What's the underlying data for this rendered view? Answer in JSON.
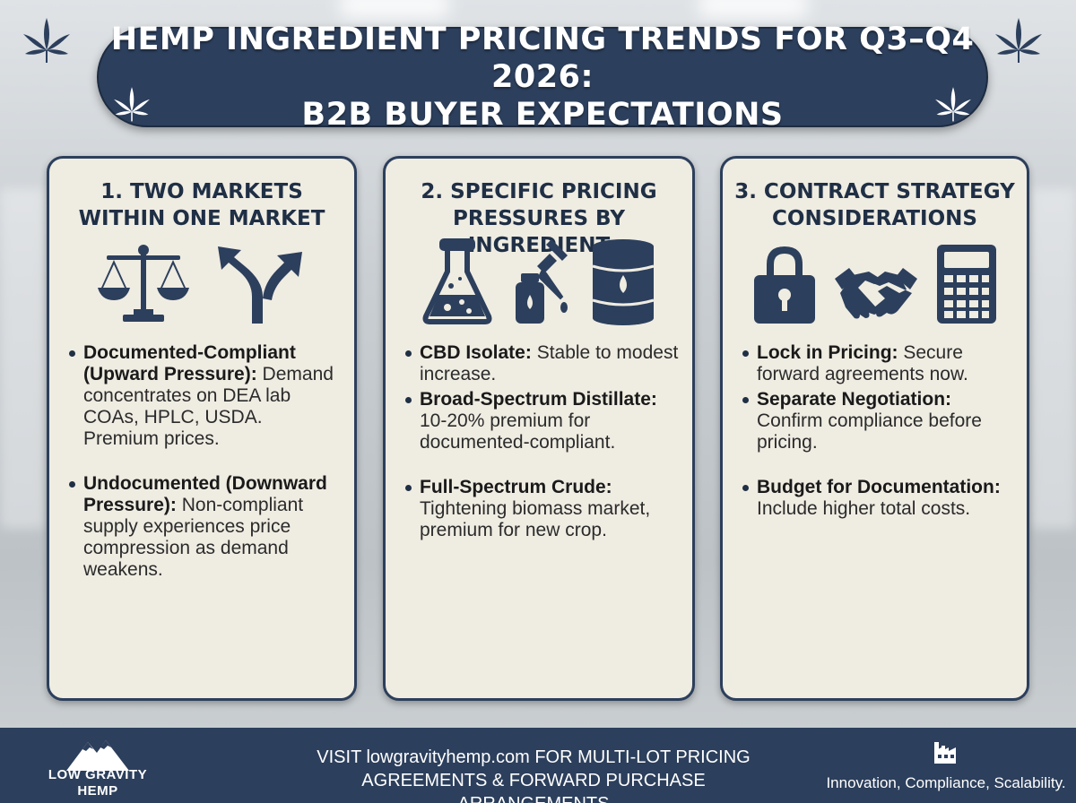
{
  "title": {
    "line1": "HEMP INGREDIENT PRICING TRENDS FOR Q3–Q4 2026:",
    "line2": "B2B BUYER EXPECTATIONS"
  },
  "panels": [
    {
      "heading_line1": "1. TWO MARKETS",
      "heading_line2": "WITHIN ONE MARKET",
      "icons": [
        "balance-scale-icon",
        "split-arrow-icon"
      ],
      "bullets": [
        {
          "bold": "Documented-Compliant (Upward Pressure):",
          "text": " Demand concentrates on DEA lab COAs, HPLC, USDA. Premium prices."
        },
        {
          "bold": "Undocumented (Downward Pressure):",
          "text": " Non-compliant supply experiences price compression as demand weakens."
        }
      ]
    },
    {
      "heading_line1": "2. SPECIFIC PRICING",
      "heading_line2": "PRESSURES BY INGREDIENT",
      "icons": [
        "flask-icon",
        "dropper-bottle-icon",
        "oil-barrel-icon"
      ],
      "bullets": [
        {
          "bold": "CBD Isolate:",
          "text": " Stable to modest increase."
        },
        {
          "bold": "Broad-Spectrum Distillate:",
          "text": " 10-20% premium for documented-compliant."
        },
        {
          "bold": "Full-Spectrum Crude:",
          "text": " Tightening biomass market, premium for new crop."
        }
      ]
    },
    {
      "heading_line1": "3. CONTRACT STRATEGY",
      "heading_line2": "CONSIDERATIONS",
      "icons": [
        "padlock-icon",
        "handshake-icon",
        "calculator-icon"
      ],
      "bullets": [
        {
          "bold": "Lock in Pricing:",
          "text": " Secure forward agreements now."
        },
        {
          "bold": "Separate Negotiation:",
          "text": " Confirm compliance before pricing."
        },
        {
          "bold": "Budget for Documentation:",
          "text": " Include higher total costs."
        }
      ]
    }
  ],
  "footer": {
    "logo_line1": "LOW GRAVITY",
    "logo_line2": "HEMP",
    "cta_line1": "VISIT lowgravityhemp.com FOR MULTI-LOT PRICING",
    "cta_line2": "AGREEMENTS & FORWARD PURCHASE ARRANGEMENTS",
    "tagline": "Innovation, Compliance, Scalability.",
    "icon": "factory-icon"
  },
  "colors": {
    "navy": "#2c3f5c",
    "panel_bg": "#efece2",
    "heading": "#1f2f45"
  }
}
